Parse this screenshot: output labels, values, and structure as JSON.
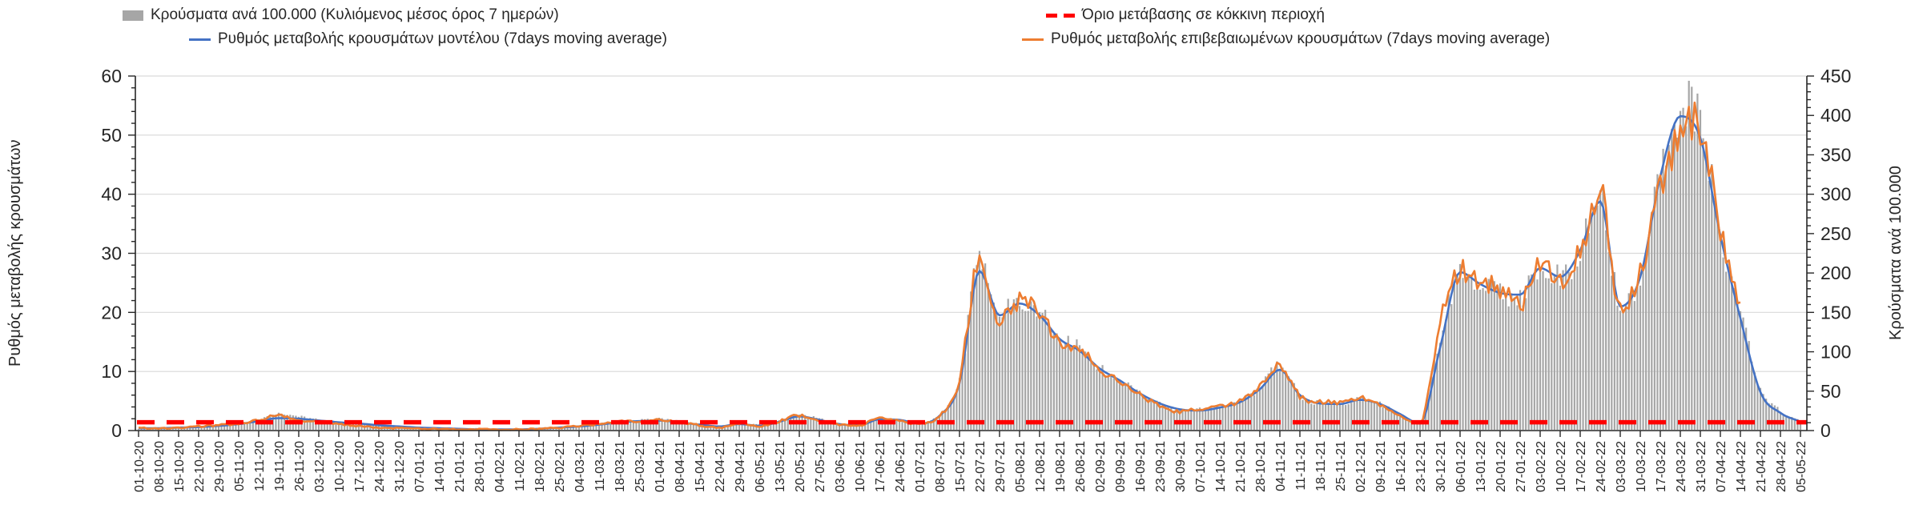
{
  "legend": {
    "items": [
      {
        "label": "Κρούσματα ανά 100.000 (Κυλιόμενος μέσος όρος 7 ημερών)",
        "marker": "bar",
        "color": "#a6a6a6"
      },
      {
        "label": "Ρυθμός μεταβολής κρουσμάτων μοντέλου (7days moving average)",
        "marker": "line",
        "color": "#4472c4"
      },
      {
        "label": "Όριο μετάβασης σε κόκκινη περιοχή",
        "marker": "dashed-line",
        "color": "#ff0000"
      },
      {
        "label": "Ρυθμός μεταβολής επιβεβαιωμένων κρουσμάτων (7days moving average)",
        "marker": "line",
        "color": "#ed7d31"
      }
    ]
  },
  "chart_data": {
    "type": "bar+line combo, dual y-axis, daily series with weekly x tick labels",
    "left_axis": {
      "title": "Ρυθμός μεταβολής κρουσμάτων",
      "min": 0,
      "max": 60,
      "step": 10,
      "minor_step": 2
    },
    "right_axis": {
      "title": "Κρούσματα ανά 100.000",
      "min": 0,
      "max": 450,
      "step": 50,
      "minor_step": 10
    },
    "grid": "horizontal gridlines at left-axis majors, color #d9d9d9",
    "legend_position": "top, two columns",
    "x_dates": [
      "01-10-20",
      "08-10-20",
      "15-10-20",
      "22-10-20",
      "29-10-20",
      "05-11-20",
      "12-11-20",
      "19-11-20",
      "26-11-20",
      "03-12-20",
      "10-12-20",
      "17-12-20",
      "24-12-20",
      "31-12-20",
      "07-01-21",
      "14-01-21",
      "21-01-21",
      "28-01-21",
      "04-02-21",
      "11-02-21",
      "18-02-21",
      "25-02-21",
      "04-03-21",
      "11-03-21",
      "18-03-21",
      "25-03-21",
      "01-04-21",
      "08-04-21",
      "15-04-21",
      "22-04-21",
      "29-04-21",
      "06-05-21",
      "13-05-21",
      "20-05-21",
      "27-05-21",
      "03-06-21",
      "10-06-21",
      "17-06-21",
      "24-06-21",
      "01-07-21",
      "08-07-21",
      "15-07-21",
      "22-07-21",
      "29-07-21",
      "05-08-21",
      "12-08-21",
      "19-08-21",
      "26-08-21",
      "02-09-21",
      "09-09-21",
      "16-09-21",
      "23-09-21",
      "30-09-21",
      "07-10-21",
      "14-10-21",
      "21-10-21",
      "28-10-21",
      "04-11-21",
      "11-11-21",
      "18-11-21",
      "25-11-21",
      "02-12-21",
      "09-12-21",
      "16-12-21",
      "23-12-21",
      "30-12-21",
      "06-01-22",
      "13-01-22",
      "20-01-22",
      "27-01-22",
      "03-02-22",
      "10-02-22",
      "17-02-22",
      "24-02-22",
      "03-03-22",
      "10-03-22",
      "17-03-22",
      "24-03-22",
      "31-03-22",
      "07-04-22",
      "14-04-22",
      "21-04-22",
      "28-04-22",
      "05-05-22"
    ],
    "series": [
      {
        "name": "Κρούσματα ανά 100.000 (Κυλιόμενος μέσος όρος 7 ημερών)",
        "type": "bar",
        "axis": "right",
        "color": "#a6a6a6",
        "values": [
          2,
          3,
          4,
          5,
          6,
          9,
          14,
          21,
          18,
          14,
          11,
          9,
          7,
          5,
          4,
          3,
          3,
          3,
          2,
          2,
          3,
          4,
          6,
          9,
          12,
          14,
          15,
          12,
          9,
          6,
          9,
          8,
          13,
          20,
          15,
          9,
          7,
          15,
          14,
          10,
          20,
          62,
          215,
          148,
          165,
          152,
          118,
          105,
          80,
          65,
          48,
          34,
          26,
          27,
          30,
          38,
          55,
          82,
          45,
          35,
          34,
          40,
          34,
          20,
          9,
          120,
          195,
          185,
          175,
          170,
          205,
          195,
          230,
          298,
          160,
          200,
          330,
          410,
          390,
          248,
          150,
          55,
          25,
          13
        ]
      },
      {
        "name": "Ρυθμός μεταβολής κρουσμάτων μοντέλου (7days moving average)",
        "type": "line",
        "axis": "left",
        "color": "#4472c4",
        "values": [
          0.4,
          0.4,
          0.5,
          0.6,
          0.8,
          1.1,
          1.6,
          2.1,
          2.0,
          1.7,
          1.4,
          1.2,
          0.9,
          0.7,
          0.5,
          0.4,
          0.3,
          0.2,
          0.2,
          0.2,
          0.3,
          0.5,
          0.7,
          1.0,
          1.4,
          1.6,
          1.7,
          1.4,
          1.0,
          0.7,
          1.1,
          0.8,
          1.5,
          2.4,
          1.8,
          1.1,
          0.9,
          1.9,
          1.8,
          1.2,
          2.5,
          8.0,
          27.0,
          19.5,
          21.5,
          19.5,
          15.5,
          13.5,
          10.5,
          8.5,
          6.3,
          4.6,
          3.6,
          3.4,
          3.9,
          4.8,
          7.0,
          10.3,
          6.0,
          4.6,
          4.5,
          5.2,
          4.5,
          2.8,
          1.2,
          14.0,
          26.8,
          24.8,
          23.3,
          23.0,
          27.5,
          26.0,
          30.5,
          38.8,
          21.0,
          26.0,
          43.0,
          53.2,
          49.5,
          33.0,
          19.0,
          6.5,
          3.0,
          1.5
        ]
      },
      {
        "name": "Ρυθμός μεταβολής επιβεβαιωμένων κρουσμάτων (7days moving average)",
        "type": "line",
        "axis": "left",
        "color": "#ed7d31",
        "values": [
          0.4,
          0.4,
          0.5,
          0.7,
          0.9,
          1.2,
          1.8,
          2.6,
          1.8,
          1.5,
          1.1,
          0.8,
          0.5,
          0.4,
          0.3,
          0.3,
          0.2,
          0.2,
          0.2,
          0.2,
          0.3,
          0.5,
          0.8,
          1.1,
          1.5,
          1.5,
          1.8,
          1.5,
          0.9,
          0.5,
          1.2,
          0.7,
          1.6,
          2.6,
          1.7,
          1.0,
          0.9,
          2.1,
          1.7,
          1.1,
          2.6,
          8.5,
          29.5,
          19.0,
          22.0,
          20.5,
          15.0,
          13.8,
          10.2,
          8.3,
          6.0,
          4.3,
          3.2,
          3.6,
          4.0,
          5.0,
          7.5,
          10.9,
          5.8,
          4.8,
          4.8,
          5.5,
          4.4,
          2.5,
          1.3,
          18.0,
          27.0,
          25.6,
          24.0,
          21.5,
          28.0,
          25.6,
          30.5,
          40.3,
          20.5,
          26.5,
          41.0,
          50.0,
          52.0,
          33.5,
          21.5,
          null,
          null,
          null
        ]
      }
    ],
    "threshold": {
      "name": "Όριο μετάβασης σε κόκκινη περιοχή",
      "axis": "left",
      "value": 1.4,
      "color": "#ff0000",
      "style": "dashed"
    },
    "bar_spikes": {
      "22-07-21": 228,
      "24-02-22": 305,
      "22-03-22": 428,
      "31-03-22": 407
    }
  }
}
